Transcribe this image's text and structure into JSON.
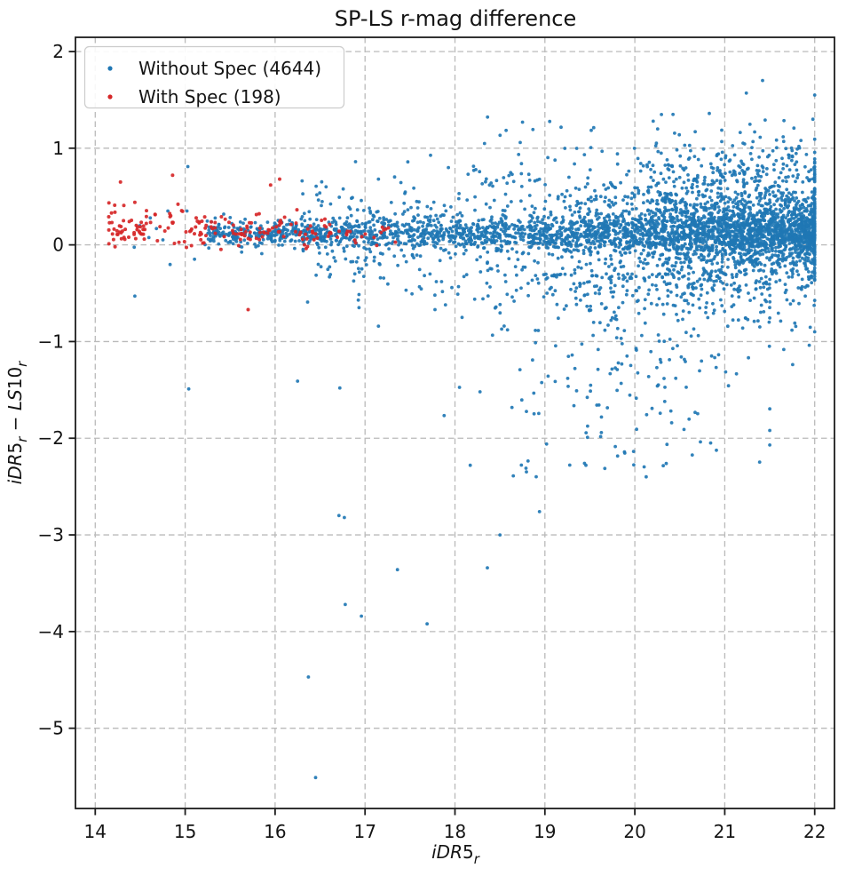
{
  "chart_data": {
    "type": "scatter",
    "title": "SP-LS r-mag difference",
    "xlabel_parts": [
      {
        "t": "iDR",
        "s": "it"
      },
      {
        "t": "5",
        "s": "up"
      },
      {
        "t": "r",
        "s": "sub"
      }
    ],
    "ylabel_parts": [
      {
        "t": "iDR",
        "s": "it"
      },
      {
        "t": "5",
        "s": "up"
      },
      {
        "t": "r",
        "s": "sub"
      },
      {
        "t": " − ",
        "s": "up"
      },
      {
        "t": "LS",
        "s": "it"
      },
      {
        "t": "10",
        "s": "up"
      },
      {
        "t": "r",
        "s": "sub"
      }
    ],
    "xlim": [
      13.78,
      22.22
    ],
    "ylim": [
      -5.83,
      2.147
    ],
    "x_ticks": [
      14,
      15,
      16,
      17,
      18,
      19,
      20,
      21,
      22
    ],
    "x_tick_labels": [
      "14",
      "15",
      "16",
      "17",
      "18",
      "19",
      "20",
      "21",
      "22"
    ],
    "y_ticks": [
      2,
      1,
      0,
      -1,
      -2,
      -3,
      -4,
      -5
    ],
    "y_tick_labels": [
      "2",
      "1",
      "0",
      "−1",
      "−2",
      "−3",
      "−4",
      "−5"
    ],
    "grid": {
      "on": true,
      "style": "dashed",
      "color": "#bababa"
    },
    "axis_color": "#1c1c1c",
    "background": "#ffffff",
    "legend": {
      "position": "upper left"
    },
    "series": [
      {
        "name": "without_spec",
        "label": "Without Spec (4644)",
        "count": 4644,
        "color": "#1f77b4",
        "marker_radius": 1.9,
        "generation": {
          "seed": 42,
          "components": [
            {
              "n": 2278,
              "x": {
                "type": "pow",
                "min": 15.25,
                "max": 22.0,
                "p": 1.65,
                "from": "max"
              },
              "y": {
                "type": "gauss",
                "mean": 0.12,
                "slope": 0,
                "ref": 15.25,
                "sd": 0.055,
                "sd_slope": 0.012,
                "sd_ref": 15.25
              }
            },
            {
              "n": 700,
              "x": {
                "type": "pow",
                "min": 16.3,
                "max": 22.0,
                "p": 1.1,
                "from": "max"
              },
              "y": {
                "type": "gauss",
                "mean": 0.08,
                "slope": 0,
                "ref": 16.3,
                "sd": 0.3,
                "sd_slope": 0.02,
                "sd_ref": 16.3
              }
            },
            {
              "n": 1250,
              "x": {
                "type": "gauss",
                "mean": 21.05,
                "sd": 0.65,
                "clamp": [
                  19.35,
                  22.0
                ]
              },
              "y": {
                "type": "gauss",
                "mean": 0.18,
                "slope": 0,
                "ref": 21.0,
                "sd": 0.42,
                "sd_slope": 0,
                "sd_ref": 21.0,
                "clamp": [
                  -1.6,
                  1.55
                ]
              }
            },
            {
              "n": 260,
              "x": {
                "type": "gauss",
                "mean": 19.85,
                "sd": 0.8,
                "clamp": [
                  17.7,
                  21.5
                ]
              },
              "y": {
                "type": "pow",
                "min": -2.4,
                "max": -0.3,
                "p": 2.0,
                "from": "max"
              }
            },
            {
              "n": 110,
              "x": {
                "type": "pow",
                "min": 18.2,
                "max": 22.0,
                "p": 0.9,
                "from": "max"
              },
              "y": {
                "type": "pow",
                "min": 0.45,
                "max": 1.35,
                "p": 2.0,
                "from": "min"
              }
            },
            {
              "n": 24,
              "x": {
                "type": "pow",
                "min": 14.35,
                "max": 16.0,
                "p": 1.0,
                "from": "min"
              },
              "y": {
                "type": "gauss",
                "mean": 0.15,
                "slope": 0,
                "ref": 15.0,
                "sd": 0.22,
                "sd_slope": 0,
                "sd_ref": 15.0
              }
            }
          ]
        },
        "outlier_points": [
          [
            16.45,
            -5.51
          ],
          [
            16.37,
            -4.47
          ],
          [
            16.96,
            -3.84
          ],
          [
            16.78,
            -3.72
          ],
          [
            17.69,
            -3.92
          ],
          [
            17.36,
            -3.36
          ],
          [
            18.36,
            -3.34
          ],
          [
            18.5,
            -3.0
          ],
          [
            18.94,
            -2.76
          ],
          [
            16.71,
            -2.8
          ],
          [
            16.77,
            -2.82
          ],
          [
            18.17,
            -2.28
          ],
          [
            18.79,
            -2.31
          ],
          [
            19.44,
            -2.26
          ],
          [
            15.04,
            -1.49
          ],
          [
            16.25,
            -1.41
          ],
          [
            16.72,
            -1.48
          ],
          [
            14.44,
            -0.53
          ],
          [
            15.03,
            0.81
          ],
          [
            21.42,
            1.7
          ],
          [
            21.24,
            1.57
          ],
          [
            21.98,
            1.3
          ]
        ]
      },
      {
        "name": "with_spec",
        "label": "With Spec (198)",
        "count": 198,
        "color": "#d62728",
        "marker_radius": 2.0,
        "generation": {
          "seed": 7,
          "components": [
            {
              "n": 165,
              "x": {
                "type": "pow",
                "min": 14.15,
                "max": 16.7,
                "p": 1.55,
                "from": "min"
              },
              "y": {
                "type": "gauss",
                "mean": 0.21,
                "slope": -0.045,
                "ref": 14.2,
                "sd": 0.095,
                "sd_slope": 0,
                "sd_ref": 14.2
              }
            },
            {
              "n": 25,
              "x": {
                "type": "pow",
                "min": 16.3,
                "max": 17.45,
                "p": 1.2,
                "from": "min"
              },
              "y": {
                "type": "gauss",
                "mean": 0.12,
                "slope": 0,
                "ref": 16.3,
                "sd": 0.06,
                "sd_slope": 0,
                "sd_ref": 16.3
              }
            }
          ]
        },
        "outlier_points": [
          [
            14.28,
            0.65
          ],
          [
            14.86,
            0.72
          ],
          [
            14.44,
            0.44
          ],
          [
            14.92,
            0.42
          ],
          [
            15.95,
            0.62
          ],
          [
            16.05,
            0.68
          ],
          [
            15.7,
            -0.67
          ],
          [
            14.22,
            -0.02
          ]
        ]
      }
    ]
  }
}
